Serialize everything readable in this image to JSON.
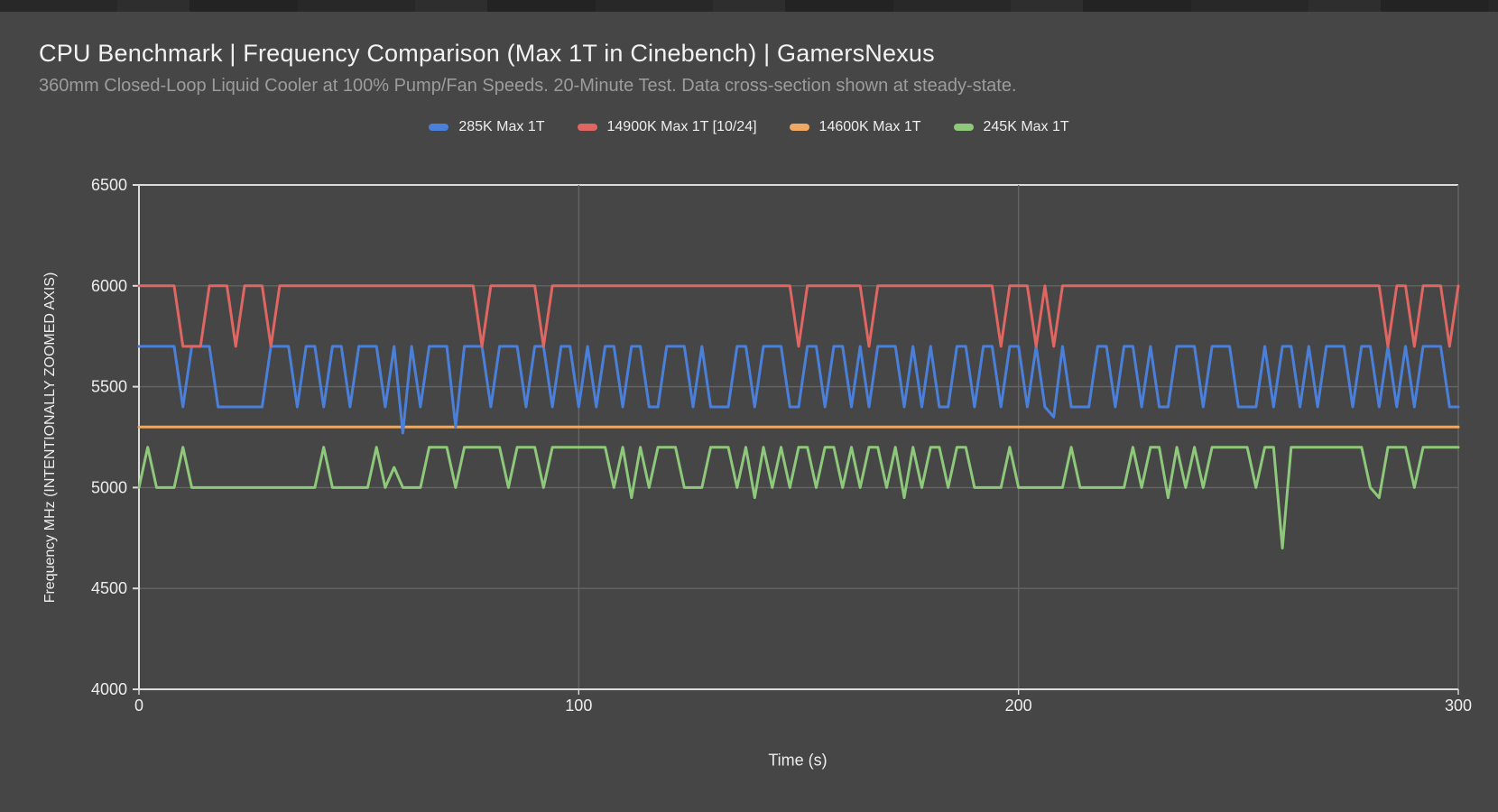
{
  "page": {
    "title": "CPU Benchmark | Frequency Comparison (Max 1T in Cinebench) | GamersNexus",
    "subtitle": "360mm Closed-Loop Liquid Cooler at 100% Pump/Fan Speeds. 20-Minute Test. Data cross-section shown at steady-state."
  },
  "colors": {
    "background": "#464646",
    "top_bar": "#282828",
    "title_text": "#f2f2f2",
    "subtitle_text": "#9c9c9c",
    "tick_text": "#ededed",
    "gridline": "#646464",
    "axis_line": "#dcdcdc",
    "series_blue": "#4a80d9",
    "series_red": "#e06661",
    "series_orange": "#f0a962",
    "series_green": "#8ec87a"
  },
  "chart_data": {
    "type": "line",
    "title": "CPU Benchmark | Frequency Comparison (Max 1T in Cinebench) | GamersNexus",
    "subtitle": "360mm Closed-Loop Liquid Cooler at 100% Pump/Fan Speeds. 20-Minute Test. Data cross-section shown at steady-state.",
    "xlabel": "Time (s)",
    "ylabel": "Frequency MHz (INTENTIONALLY ZOOMED AXIS)",
    "xlim": [
      0,
      300
    ],
    "ylim": [
      4000,
      6500
    ],
    "xticks": [
      0,
      100,
      200,
      300
    ],
    "yticks": [
      4000,
      4500,
      5000,
      5500,
      6000,
      6500
    ],
    "grid": true,
    "legend_position": "top",
    "x_start": 0,
    "x_step": 2,
    "n_points": 151,
    "series": [
      {
        "name": "285K Max 1T",
        "color": "#4a80d9",
        "values": [
          5700,
          5700,
          5700,
          5700,
          5700,
          5400,
          5700,
          5700,
          5700,
          5400,
          5400,
          5400,
          5400,
          5400,
          5400,
          5700,
          5700,
          5700,
          5400,
          5700,
          5700,
          5400,
          5700,
          5700,
          5400,
          5700,
          5700,
          5700,
          5400,
          5700,
          5270,
          5700,
          5400,
          5700,
          5700,
          5700,
          5300,
          5700,
          5700,
          5700,
          5400,
          5700,
          5700,
          5700,
          5400,
          5700,
          5700,
          5400,
          5700,
          5700,
          5400,
          5700,
          5400,
          5700,
          5700,
          5400,
          5700,
          5700,
          5400,
          5400,
          5700,
          5700,
          5700,
          5400,
          5700,
          5400,
          5400,
          5400,
          5700,
          5700,
          5400,
          5700,
          5700,
          5700,
          5400,
          5400,
          5700,
          5700,
          5400,
          5700,
          5700,
          5400,
          5700,
          5400,
          5700,
          5700,
          5700,
          5400,
          5700,
          5400,
          5700,
          5400,
          5400,
          5700,
          5700,
          5400,
          5700,
          5700,
          5400,
          5700,
          5700,
          5400,
          5700,
          5400,
          5350,
          5700,
          5400,
          5400,
          5400,
          5700,
          5700,
          5400,
          5700,
          5700,
          5400,
          5700,
          5400,
          5400,
          5700,
          5700,
          5700,
          5400,
          5700,
          5700,
          5700,
          5400,
          5400,
          5400,
          5700,
          5400,
          5700,
          5700,
          5400,
          5700,
          5400,
          5700,
          5700,
          5700,
          5400,
          5700,
          5700,
          5400,
          5700,
          5400,
          5700,
          5400,
          5700,
          5700,
          5700,
          5400,
          5400
        ]
      },
      {
        "name": "14900K Max 1T [10/24]",
        "color": "#e06661",
        "values": [
          6000,
          6000,
          6000,
          6000,
          6000,
          5700,
          5700,
          5700,
          6000,
          6000,
          6000,
          5700,
          6000,
          6000,
          6000,
          5700,
          6000,
          6000,
          6000,
          6000,
          6000,
          6000,
          6000,
          6000,
          6000,
          6000,
          6000,
          6000,
          6000,
          6000,
          6000,
          6000,
          6000,
          6000,
          6000,
          6000,
          6000,
          6000,
          6000,
          5700,
          6000,
          6000,
          6000,
          6000,
          6000,
          6000,
          5700,
          6000,
          6000,
          6000,
          6000,
          6000,
          6000,
          6000,
          6000,
          6000,
          6000,
          6000,
          6000,
          6000,
          6000,
          6000,
          6000,
          6000,
          6000,
          6000,
          6000,
          6000,
          6000,
          6000,
          6000,
          6000,
          6000,
          6000,
          6000,
          5700,
          6000,
          6000,
          6000,
          6000,
          6000,
          6000,
          6000,
          5700,
          6000,
          6000,
          6000,
          6000,
          6000,
          6000,
          6000,
          6000,
          6000,
          6000,
          6000,
          6000,
          6000,
          6000,
          5700,
          6000,
          6000,
          6000,
          5700,
          6000,
          5700,
          6000,
          6000,
          6000,
          6000,
          6000,
          6000,
          6000,
          6000,
          6000,
          6000,
          6000,
          6000,
          6000,
          6000,
          6000,
          6000,
          6000,
          6000,
          6000,
          6000,
          6000,
          6000,
          6000,
          6000,
          6000,
          6000,
          6000,
          6000,
          6000,
          6000,
          6000,
          6000,
          6000,
          6000,
          6000,
          6000,
          6000,
          5700,
          6000,
          6000,
          5700,
          6000,
          6000,
          6000,
          5700,
          6000
        ]
      },
      {
        "name": "14600K Max 1T",
        "color": "#f0a962",
        "values": [
          5300,
          5300,
          5300,
          5300,
          5300,
          5300,
          5300,
          5300,
          5300,
          5300,
          5300,
          5300,
          5300,
          5300,
          5300,
          5300,
          5300,
          5300,
          5300,
          5300,
          5300,
          5300,
          5300,
          5300,
          5300,
          5300,
          5300,
          5300,
          5300,
          5300,
          5300,
          5300,
          5300,
          5300,
          5300,
          5300,
          5300,
          5300,
          5300,
          5300,
          5300,
          5300,
          5300,
          5300,
          5300,
          5300,
          5300,
          5300,
          5300,
          5300,
          5300,
          5300,
          5300,
          5300,
          5300,
          5300,
          5300,
          5300,
          5300,
          5300,
          5300,
          5300,
          5300,
          5300,
          5300,
          5300,
          5300,
          5300,
          5300,
          5300,
          5300,
          5300,
          5300,
          5300,
          5300,
          5300,
          5300,
          5300,
          5300,
          5300,
          5300,
          5300,
          5300,
          5300,
          5300,
          5300,
          5300,
          5300,
          5300,
          5300,
          5300,
          5300,
          5300,
          5300,
          5300,
          5300,
          5300,
          5300,
          5300,
          5300,
          5300,
          5300,
          5300,
          5300,
          5300,
          5300,
          5300,
          5300,
          5300,
          5300,
          5300,
          5300,
          5300,
          5300,
          5300,
          5300,
          5300,
          5300,
          5300,
          5300,
          5300,
          5300,
          5300,
          5300,
          5300,
          5300,
          5300,
          5300,
          5300,
          5300,
          5300,
          5300,
          5300,
          5300,
          5300,
          5300,
          5300,
          5300,
          5300,
          5300,
          5300,
          5300,
          5300,
          5300,
          5300,
          5300,
          5300,
          5300,
          5300,
          5300,
          5300
        ]
      },
      {
        "name": "245K Max 1T",
        "color": "#8ec87a",
        "values": [
          5000,
          5200,
          5000,
          5000,
          5000,
          5200,
          5000,
          5000,
          5000,
          5000,
          5000,
          5000,
          5000,
          5000,
          5000,
          5000,
          5000,
          5000,
          5000,
          5000,
          5000,
          5200,
          5000,
          5000,
          5000,
          5000,
          5000,
          5200,
          5000,
          5100,
          5000,
          5000,
          5000,
          5200,
          5200,
          5200,
          5000,
          5200,
          5200,
          5200,
          5200,
          5200,
          5000,
          5200,
          5200,
          5200,
          5000,
          5200,
          5200,
          5200,
          5200,
          5200,
          5200,
          5200,
          5000,
          5200,
          4950,
          5200,
          5000,
          5200,
          5200,
          5200,
          5000,
          5000,
          5000,
          5200,
          5200,
          5200,
          5000,
          5200,
          4950,
          5200,
          5000,
          5200,
          5000,
          5200,
          5200,
          5000,
          5200,
          5200,
          5000,
          5200,
          5000,
          5200,
          5200,
          5000,
          5200,
          4950,
          5200,
          5000,
          5200,
          5200,
          5000,
          5200,
          5200,
          5000,
          5000,
          5000,
          5000,
          5200,
          5000,
          5000,
          5000,
          5000,
          5000,
          5000,
          5200,
          5000,
          5000,
          5000,
          5000,
          5000,
          5000,
          5200,
          5000,
          5200,
          5200,
          4950,
          5200,
          5000,
          5200,
          5000,
          5200,
          5200,
          5200,
          5200,
          5200,
          5000,
          5200,
          5200,
          4700,
          5200,
          5200,
          5200,
          5200,
          5200,
          5200,
          5200,
          5200,
          5200,
          5000,
          4950,
          5200,
          5200,
          5200,
          5000,
          5200,
          5200,
          5200,
          5200,
          5200
        ]
      }
    ]
  }
}
